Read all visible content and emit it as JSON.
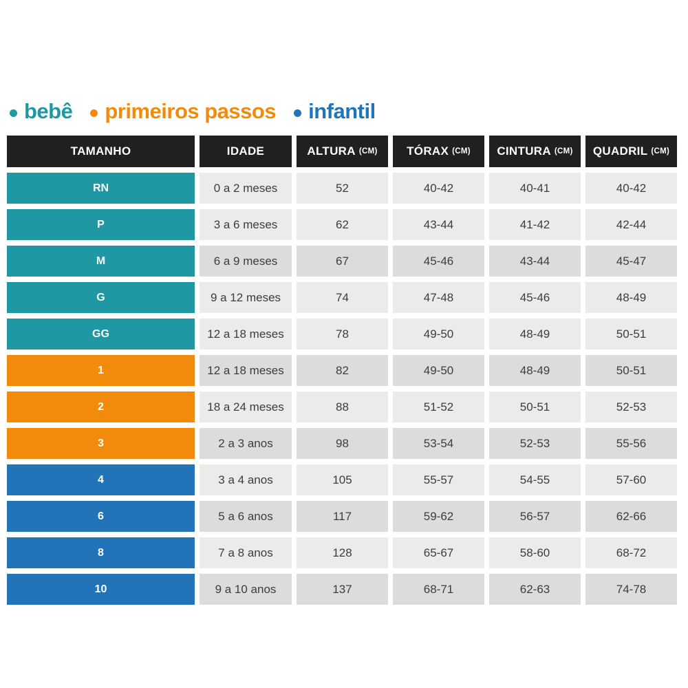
{
  "palette": {
    "teal": "#1f98a4",
    "orange": "#f28b0c",
    "blue": "#2373b8",
    "header_bg": "#211f1f",
    "cell_light": "#ebebea",
    "cell_dark": "#dcdcdb",
    "text_dark": "#3d3c3c",
    "background": "#ffffff"
  },
  "legend": {
    "items": [
      {
        "label": "bebê",
        "color": "#1f98a4"
      },
      {
        "label": "primeiros passos",
        "color": "#f28b0c"
      },
      {
        "label": "infantil",
        "color": "#2373b8"
      }
    ]
  },
  "table": {
    "headers": [
      {
        "label": "TAMANHO",
        "unit": ""
      },
      {
        "label": "IDADE",
        "unit": ""
      },
      {
        "label": "ALTURA",
        "unit": "(CM)"
      },
      {
        "label": "TÓRAX",
        "unit": "(CM)"
      },
      {
        "label": "CINTURA",
        "unit": "(CM)"
      },
      {
        "label": "QUADRIL",
        "unit": "(CM)"
      }
    ],
    "rows": [
      {
        "size": "RN",
        "group": "bebê",
        "shade": "light",
        "idade": "0 a 2 meses",
        "altura": "52",
        "torax": "40-42",
        "cintura": "40-41",
        "quadril": "40-42"
      },
      {
        "size": "P",
        "group": "bebê",
        "shade": "light",
        "idade": "3 a 6 meses",
        "altura": "62",
        "torax": "43-44",
        "cintura": "41-42",
        "quadril": "42-44"
      },
      {
        "size": "M",
        "group": "bebê",
        "shade": "dark",
        "idade": "6 a 9 meses",
        "altura": "67",
        "torax": "45-46",
        "cintura": "43-44",
        "quadril": "45-47"
      },
      {
        "size": "G",
        "group": "bebê",
        "shade": "light",
        "idade": "9 a 12 meses",
        "altura": "74",
        "torax": "47-48",
        "cintura": "45-46",
        "quadril": "48-49"
      },
      {
        "size": "GG",
        "group": "bebê",
        "shade": "light",
        "idade": "12 a 18 meses",
        "altura": "78",
        "torax": "49-50",
        "cintura": "48-49",
        "quadril": "50-51"
      },
      {
        "size": "1",
        "group": "primeiros passos",
        "shade": "dark",
        "idade": "12 a 18 meses",
        "altura": "82",
        "torax": "49-50",
        "cintura": "48-49",
        "quadril": "50-51"
      },
      {
        "size": "2",
        "group": "primeiros passos",
        "shade": "light",
        "idade": "18 a 24 meses",
        "altura": "88",
        "torax": "51-52",
        "cintura": "50-51",
        "quadril": "52-53"
      },
      {
        "size": "3",
        "group": "primeiros passos",
        "shade": "dark",
        "idade": "2 a 3 anos",
        "altura": "98",
        "torax": "53-54",
        "cintura": "52-53",
        "quadril": "55-56"
      },
      {
        "size": "4",
        "group": "infantil",
        "shade": "light",
        "idade": "3 a 4 anos",
        "altura": "105",
        "torax": "55-57",
        "cintura": "54-55",
        "quadril": "57-60"
      },
      {
        "size": "6",
        "group": "infantil",
        "shade": "dark",
        "idade": "5 a 6 anos",
        "altura": "117",
        "torax": "59-62",
        "cintura": "56-57",
        "quadril": "62-66"
      },
      {
        "size": "8",
        "group": "infantil",
        "shade": "light",
        "idade": "7 a 8 anos",
        "altura": "128",
        "torax": "65-67",
        "cintura": "58-60",
        "quadril": "68-72"
      },
      {
        "size": "10",
        "group": "infantil",
        "shade": "dark",
        "idade": "9 a 10 anos",
        "altura": "137",
        "torax": "68-71",
        "cintura": "62-63",
        "quadril": "74-78"
      }
    ]
  },
  "chart_data": {
    "type": "table",
    "title": "",
    "legend_entries": [
      "bebê",
      "primeiros passos",
      "infantil"
    ],
    "columns": [
      "TAMANHO",
      "IDADE",
      "ALTURA (CM)",
      "TÓRAX (CM)",
      "CINTURA (CM)",
      "QUADRIL (CM)"
    ],
    "rows": [
      [
        "RN",
        "0 a 2 meses",
        "52",
        "40-42",
        "40-41",
        "40-42"
      ],
      [
        "P",
        "3 a 6 meses",
        "62",
        "43-44",
        "41-42",
        "42-44"
      ],
      [
        "M",
        "6 a 9 meses",
        "67",
        "45-46",
        "43-44",
        "45-47"
      ],
      [
        "G",
        "9 a 12 meses",
        "74",
        "47-48",
        "45-46",
        "48-49"
      ],
      [
        "GG",
        "12 a 18 meses",
        "78",
        "49-50",
        "48-49",
        "50-51"
      ],
      [
        "1",
        "12 a 18 meses",
        "82",
        "49-50",
        "48-49",
        "50-51"
      ],
      [
        "2",
        "18 a 24 meses",
        "88",
        "51-52",
        "50-51",
        "52-53"
      ],
      [
        "3",
        "2 a 3 anos",
        "98",
        "53-54",
        "52-53",
        "55-56"
      ],
      [
        "4",
        "3 a 4 anos",
        "105",
        "55-57",
        "54-55",
        "57-60"
      ],
      [
        "6",
        "5 a 6 anos",
        "117",
        "59-62",
        "56-57",
        "62-66"
      ],
      [
        "8",
        "7 a 8 anos",
        "128",
        "65-67",
        "58-60",
        "68-72"
      ],
      [
        "10",
        "9 a 10 anos",
        "137",
        "68-71",
        "62-63",
        "74-78"
      ]
    ],
    "groups": {
      "bebê": [
        "RN",
        "P",
        "M",
        "G",
        "GG"
      ],
      "primeiros passos": [
        "1",
        "2",
        "3"
      ],
      "infantil": [
        "4",
        "6",
        "8",
        "10"
      ]
    }
  }
}
